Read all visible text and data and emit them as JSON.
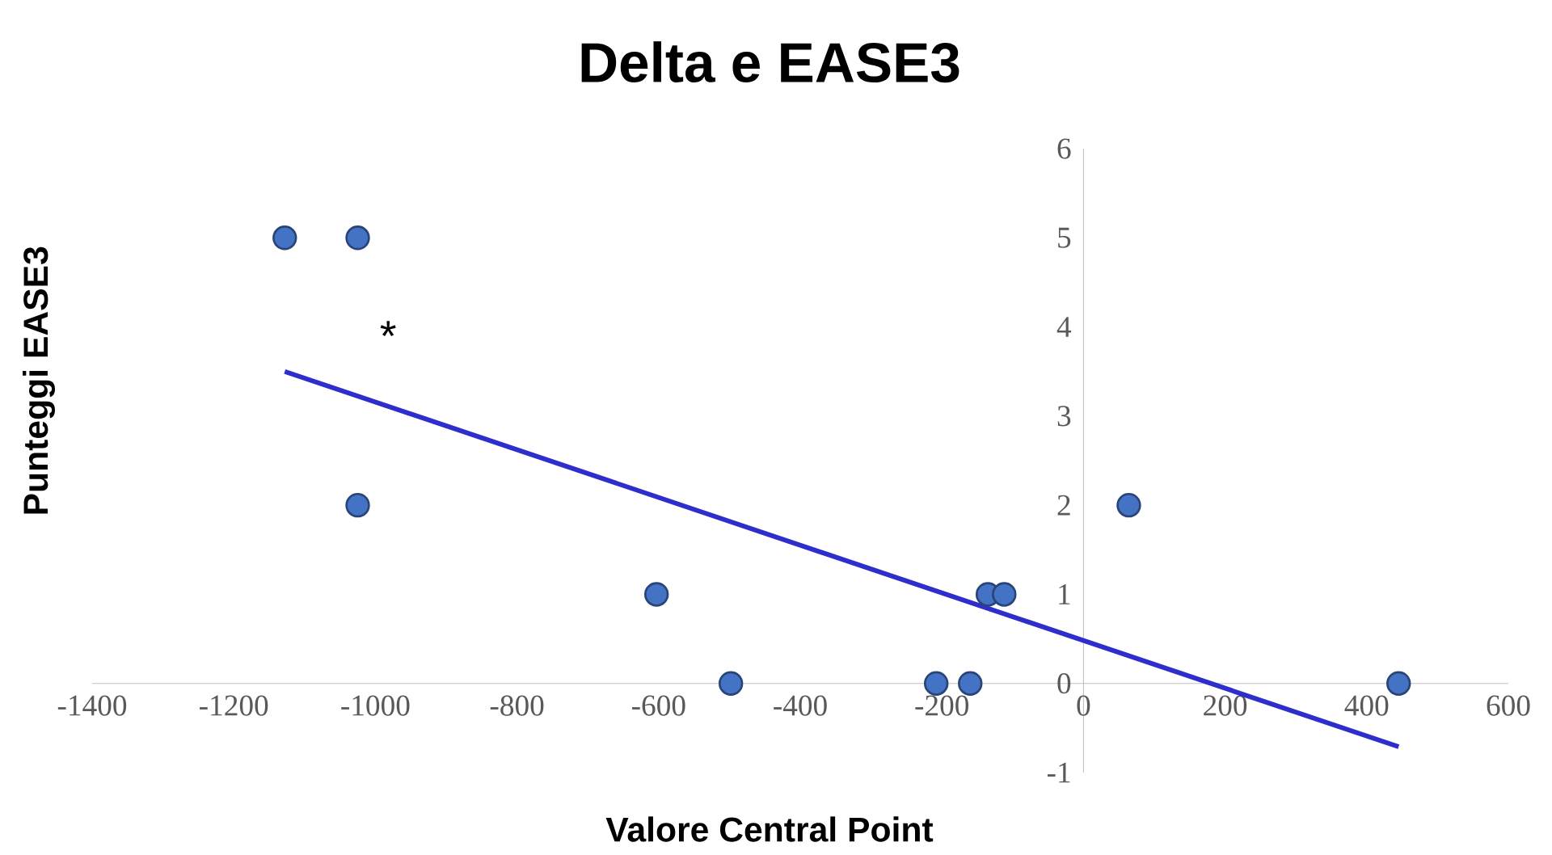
{
  "chart_data": {
    "type": "scatter",
    "title": "Delta e EASE3",
    "xlabel": "Valore Central Point",
    "ylabel": "Punteggi EASE3",
    "xlim": [
      -1400,
      600
    ],
    "ylim": [
      -1,
      6
    ],
    "xticks": [
      -1400,
      -1200,
      -1000,
      -800,
      -600,
      -400,
      -200,
      0,
      200,
      400,
      600
    ],
    "yticks": [
      -1,
      0,
      1,
      2,
      3,
      4,
      5,
      6
    ],
    "annotations": [
      "*"
    ],
    "series": [
      {
        "color": "#4472c4",
        "marker": "circle",
        "x": [
          -1128,
          -1025,
          -1025,
          -603,
          -498,
          -208,
          -160,
          -135,
          -112,
          64,
          445
        ],
        "values": [
          5,
          5,
          2,
          1,
          0,
          0,
          0,
          1,
          1,
          2,
          0
        ]
      },
      {
        "type": "line",
        "color": "#2e2ecc",
        "x": [
          -1128,
          445
        ],
        "values": [
          3.5,
          -0.71
        ]
      }
    ]
  }
}
